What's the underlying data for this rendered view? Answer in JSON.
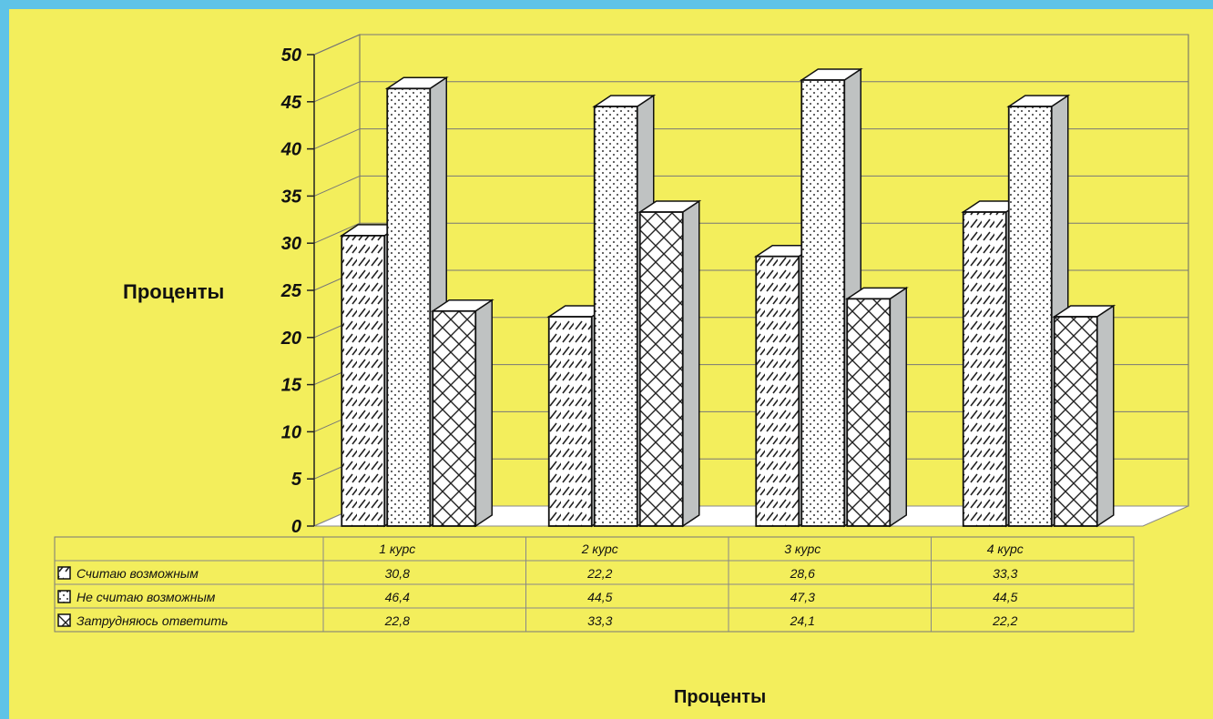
{
  "chart_data": {
    "type": "bar",
    "ylabel": "Проценты",
    "xlabel": "Проценты",
    "ylim": [
      0,
      50
    ],
    "y_ticks": [
      "0",
      "5",
      "10",
      "15",
      "20",
      "25",
      "30",
      "35",
      "40",
      "45",
      "50"
    ],
    "categories": [
      "1 курс",
      "2 курс",
      "3 курс",
      "4 курс"
    ],
    "series": [
      {
        "name": "Считаю возможным",
        "values": [
          30.8,
          22.2,
          28.6,
          33.3
        ],
        "labels": [
          "30,8",
          "22,2",
          "28,6",
          "33,3"
        ],
        "pattern": "diagonal-lines"
      },
      {
        "name": "Не считаю возможным",
        "values": [
          46.4,
          44.5,
          47.3,
          44.5
        ],
        "labels": [
          "46,4",
          "44,5",
          "47,3",
          "44,5"
        ],
        "pattern": "dots"
      },
      {
        "name": "Затрудняюсь ответить",
        "values": [
          22.8,
          33.3,
          24.1,
          22.2
        ],
        "labels": [
          "22,8",
          "33,3",
          "24,1",
          "22,2"
        ],
        "pattern": "crosshatch"
      }
    ],
    "grid": true,
    "legend": "data-table-below",
    "three_d": true
  },
  "colors": {
    "background": "#f3ee5c",
    "frame": "#5fc3e7",
    "bar_face": "#ffffff",
    "bar_side": "#bfc2c2",
    "outline": "#111111"
  }
}
